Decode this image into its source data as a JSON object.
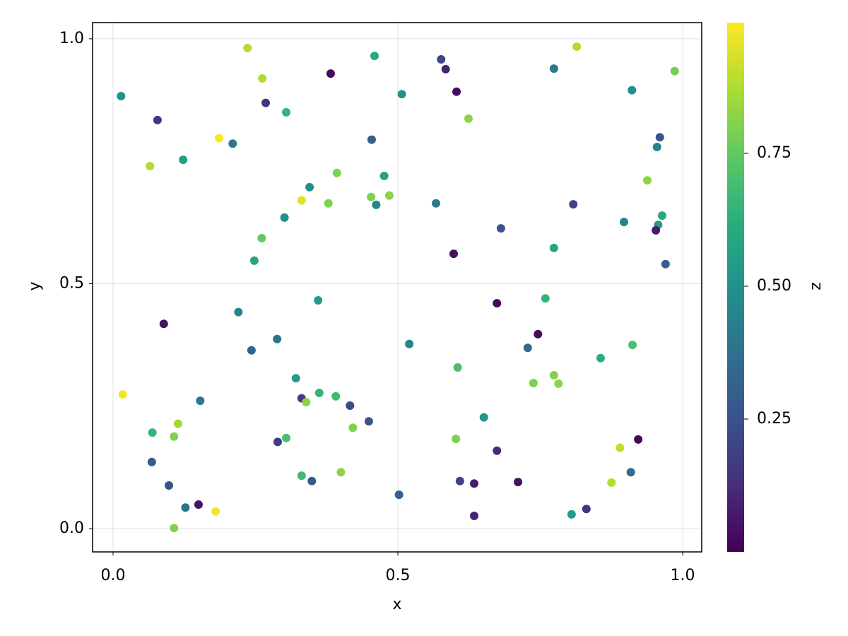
{
  "chart_data": {
    "type": "scatter",
    "xlabel": "x",
    "ylabel": "y",
    "zlabel": "z",
    "colormap": "viridis",
    "grid": true,
    "xlim": [
      -0.036,
      1.0335
    ],
    "ylim": [
      -0.0476,
      1.033
    ],
    "xticks": [
      {
        "value": 0,
        "label": "0.0"
      },
      0.5,
      {
        "value": 1,
        "label": "1.0"
      }
    ],
    "yticks": [
      {
        "value": 0,
        "label": "0.0"
      },
      0.5,
      {
        "value": 1,
        "label": "1.0"
      }
    ],
    "zlim": [
      0.0,
      0.996
    ],
    "zticks": [
      0.25,
      {
        "value": 0.5,
        "label": "0.50"
      },
      0.75
    ],
    "x": [
      0.014,
      0.078,
      0.065,
      0.123,
      0.186,
      0.21,
      0.236,
      0.262,
      0.268,
      0.304,
      0.382,
      0.459,
      0.507,
      0.576,
      0.584,
      0.603,
      0.624,
      0.814,
      0.774,
      0.911,
      0.986,
      0.96,
      0.955,
      0.938,
      0.964,
      0.957,
      0.953,
      0.97,
      0.897,
      0.808,
      0.681,
      0.774,
      0.598,
      0.567,
      0.454,
      0.476,
      0.485,
      0.453,
      0.462,
      0.393,
      0.345,
      0.331,
      0.378,
      0.301,
      0.261,
      0.248,
      0.089,
      0.22,
      0.243,
      0.288,
      0.36,
      0.52,
      0.674,
      0.759,
      0.746,
      0.728,
      0.912,
      0.856,
      0.605,
      0.774,
      0.738,
      0.782,
      0.321,
      0.362,
      0.391,
      0.331,
      0.339,
      0.416,
      0.449,
      0.421,
      0.017,
      0.153,
      0.069,
      0.114,
      0.107,
      0.289,
      0.304,
      0.651,
      0.602,
      0.674,
      0.89,
      0.922,
      0.909,
      0.068,
      0.4,
      0.331,
      0.349,
      0.098,
      0.609,
      0.634,
      0.711,
      0.875,
      0.15,
      0.127,
      0.18,
      0.502,
      0.107,
      0.634,
      0.805,
      0.831
    ],
    "y": [
      0.883,
      0.834,
      0.74,
      0.753,
      0.797,
      0.786,
      0.981,
      0.919,
      0.869,
      0.85,
      0.929,
      0.965,
      0.887,
      0.958,
      0.938,
      0.892,
      0.837,
      0.984,
      0.939,
      0.895,
      0.934,
      0.799,
      0.779,
      0.711,
      0.639,
      0.62,
      0.609,
      0.54,
      0.626,
      0.662,
      0.613,
      0.573,
      0.561,
      0.664,
      0.794,
      0.72,
      0.68,
      0.677,
      0.661,
      0.726,
      0.697,
      0.67,
      0.664,
      0.635,
      0.593,
      0.547,
      0.418,
      0.442,
      0.364,
      0.387,
      0.466,
      0.377,
      0.46,
      0.47,
      0.397,
      0.369,
      0.375,
      0.348,
      0.329,
      0.313,
      0.297,
      0.296,
      0.307,
      0.277,
      0.27,
      0.266,
      0.258,
      0.251,
      0.219,
      0.206,
      0.274,
      0.261,
      0.196,
      0.214,
      0.188,
      0.177,
      0.185,
      0.227,
      0.183,
      0.159,
      0.165,
      0.182,
      0.115,
      0.136,
      0.115,
      0.108,
      0.097,
      0.088,
      0.097,
      0.092,
      0.095,
      0.094,
      0.049,
      0.043,
      0.035,
      0.069,
      0.001,
      0.026,
      0.029,
      0.04
    ],
    "z": [
      0.5,
      0.15,
      0.88,
      0.55,
      0.99,
      0.4,
      0.88,
      0.87,
      0.15,
      0.65,
      0.03,
      0.6,
      0.5,
      0.2,
      0.1,
      0.03,
      0.82,
      0.88,
      0.4,
      0.5,
      0.78,
      0.25,
      0.45,
      0.82,
      0.6,
      0.55,
      0.08,
      0.3,
      0.45,
      0.2,
      0.25,
      0.58,
      0.05,
      0.4,
      0.3,
      0.57,
      0.82,
      0.8,
      0.45,
      0.8,
      0.5,
      0.95,
      0.8,
      0.5,
      0.75,
      0.58,
      0.05,
      0.45,
      0.32,
      0.38,
      0.55,
      0.45,
      0.03,
      0.65,
      0.03,
      0.35,
      0.7,
      0.62,
      0.7,
      0.8,
      0.8,
      0.82,
      0.55,
      0.65,
      0.68,
      0.18,
      0.82,
      0.22,
      0.25,
      0.8,
      0.98,
      0.4,
      0.65,
      0.85,
      0.8,
      0.18,
      0.7,
      0.52,
      0.8,
      0.12,
      0.9,
      0.02,
      0.35,
      0.28,
      0.82,
      0.68,
      0.28,
      0.25,
      0.2,
      0.08,
      0.05,
      0.88,
      0.05,
      0.38,
      0.98,
      0.3,
      0.8,
      0.1,
      0.55,
      0.15
    ]
  }
}
